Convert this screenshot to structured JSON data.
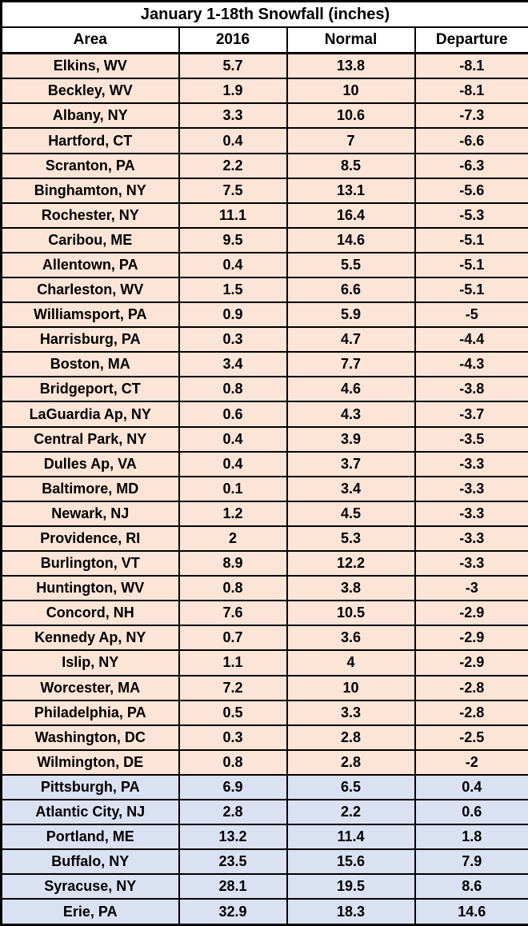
{
  "colors": {
    "below_normal_row": "#FCE4D6",
    "above_normal_row": "#D9E1F2",
    "border": "#000000",
    "header_bg": "#FFFFFF",
    "text": "#000000"
  },
  "chart_data": {
    "type": "table",
    "title": "January 1-18th Snowfall (inches)",
    "columns": [
      "Area",
      "2016",
      "Normal",
      "Departure"
    ],
    "rows": [
      [
        "Elkins, WV",
        5.7,
        13.8,
        -8.1
      ],
      [
        "Beckley, WV",
        1.9,
        10,
        -8.1
      ],
      [
        "Albany, NY",
        3.3,
        10.6,
        -7.3
      ],
      [
        "Hartford, CT",
        0.4,
        7,
        -6.6
      ],
      [
        "Scranton, PA",
        2.2,
        8.5,
        -6.3
      ],
      [
        "Binghamton, NY",
        7.5,
        13.1,
        -5.6
      ],
      [
        "Rochester, NY",
        11.1,
        16.4,
        -5.3
      ],
      [
        "Caribou, ME",
        9.5,
        14.6,
        -5.1
      ],
      [
        "Allentown, PA",
        0.4,
        5.5,
        -5.1
      ],
      [
        "Charleston, WV",
        1.5,
        6.6,
        -5.1
      ],
      [
        "Williamsport, PA",
        0.9,
        5.9,
        -5
      ],
      [
        "Harrisburg, PA",
        0.3,
        4.7,
        -4.4
      ],
      [
        "Boston, MA",
        3.4,
        7.7,
        -4.3
      ],
      [
        "Bridgeport, CT",
        0.8,
        4.6,
        -3.8
      ],
      [
        "LaGuardia Ap, NY",
        0.6,
        4.3,
        -3.7
      ],
      [
        "Central Park, NY",
        0.4,
        3.9,
        -3.5
      ],
      [
        "Dulles Ap, VA",
        0.4,
        3.7,
        -3.3
      ],
      [
        "Baltimore, MD",
        0.1,
        3.4,
        -3.3
      ],
      [
        "Newark, NJ",
        1.2,
        4.5,
        -3.3
      ],
      [
        "Providence, RI",
        2,
        5.3,
        -3.3
      ],
      [
        "Burlington, VT",
        8.9,
        12.2,
        -3.3
      ],
      [
        "Huntington, WV",
        0.8,
        3.8,
        -3
      ],
      [
        "Concord, NH",
        7.6,
        10.5,
        -2.9
      ],
      [
        "Kennedy Ap, NY",
        0.7,
        3.6,
        -2.9
      ],
      [
        "Islip, NY",
        1.1,
        4,
        -2.9
      ],
      [
        "Worcester, MA",
        7.2,
        10,
        -2.8
      ],
      [
        "Philadelphia, PA",
        0.5,
        3.3,
        -2.8
      ],
      [
        "Washington, DC",
        0.3,
        2.8,
        -2.5
      ],
      [
        "Wilmington, DE",
        0.8,
        2.8,
        -2
      ],
      [
        "Pittsburgh, PA",
        6.9,
        6.5,
        0.4
      ],
      [
        "Atlantic City, NJ",
        2.8,
        2.2,
        0.6
      ],
      [
        "Portland, ME",
        13.2,
        11.4,
        1.8
      ],
      [
        "Buffalo, NY",
        23.5,
        15.6,
        7.9
      ],
      [
        "Syracuse, NY",
        28.1,
        19.5,
        8.6
      ],
      [
        "Erie, PA",
        32.9,
        18.3,
        14.6
      ]
    ]
  }
}
